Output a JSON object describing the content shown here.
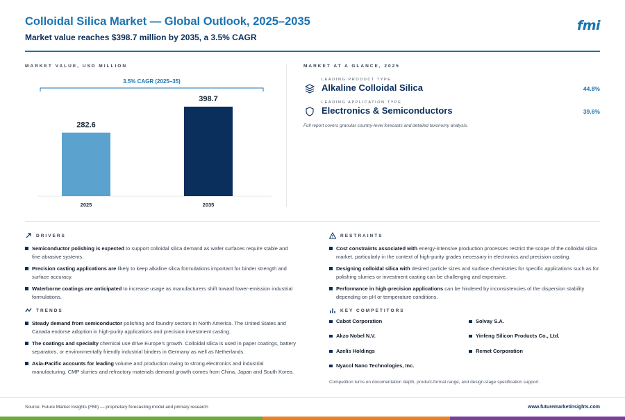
{
  "header": {
    "title": "Colloidal Silica Market — Global Outlook, 2025–2035",
    "subtitle": "Market value reaches $398.7 million by 2035, a 3.5% CAGR",
    "logo": "fmi"
  },
  "chart_section": {
    "label": "MARKET VALUE, USD MILLION"
  },
  "chart_data": {
    "type": "bar",
    "categories": [
      "2025",
      "2035"
    ],
    "values": [
      282.6,
      398.7
    ],
    "value_labels": [
      "282.6",
      "398.7"
    ],
    "annotation": "3.5% CAGR (2025–35)",
    "colors": [
      "#5ba2cf",
      "#0b2f5c"
    ],
    "ylim": [
      0,
      420
    ],
    "title": "",
    "xlabel": "",
    "ylabel": ""
  },
  "glance": {
    "label": "MARKET AT A GLANCE, 2025",
    "items": [
      {
        "kicker": "LEADING PRODUCT TYPE",
        "value": "Alkaline Colloidal Silica",
        "pct": "44.8%",
        "icon": "layers-icon"
      },
      {
        "kicker": "LEADING APPLICATION TYPE",
        "value": "Electronics & Semiconductors",
        "pct": "39.6%",
        "icon": "shield-icon"
      }
    ],
    "note": "Full report covers granular country-level forecasts and detailed taxonomy analysis."
  },
  "drivers": {
    "label": "DRIVERS",
    "items": [
      {
        "bold": "Semiconductor polishing is expected",
        "text": " to support colloidal silica demand as wafer surfaces require stable and fine abrasive systems."
      },
      {
        "bold": "Precision casting applications are",
        "text": " likely to keep alkaline silica formulations important for binder strength and surface accuracy."
      },
      {
        "bold": "Waterborne coatings are anticipated",
        "text": " to increase usage as manufacturers shift toward lower-emission industrial formulations."
      }
    ]
  },
  "trends": {
    "label": "TRENDS",
    "items": [
      {
        "bold": "Steady demand from semiconductor",
        "text": " polishing and foundry sectors in North America. The United States and Canada endorse adoption in high-purity applications and precision investment casting."
      },
      {
        "bold": "The coatings and specialty",
        "text": " chemical use drive Europe’s growth. Colloidal silica is used in paper coatings, battery separators, or environmentally friendly industrial binders in Germany as well as Netherlands."
      },
      {
        "bold": "Asia-Pacific accounts for leading",
        "text": " volume and production owing to strong electronics and industrial manufacturing. CMP slurries and refractory materials demand growth comes from China, Japan and South Korea."
      }
    ]
  },
  "restraints": {
    "label": "RESTRAINTS",
    "items": [
      {
        "bold": "Cost constraints associated with",
        "text": " energy-intensive production processes restrict the scope of the colloidal silica market, particularly in the context of high-purity grades necessary in electronics and precision casting."
      },
      {
        "bold": "Designing colloidal silica with",
        "text": " desired particle sizes and surface chemistries for specific applications such as for polishing slurries or investment casting can be challenging and expensive."
      },
      {
        "bold": "Performance in high-precision applications",
        "text": " can be hindered by inconsistencies of the dispersion stability depending on pH or temperature conditions."
      }
    ]
  },
  "competitors": {
    "label": "KEY COMPETITORS",
    "items": [
      "Cabot Corporation",
      "Solvay S.A.",
      "Akzo Nobel N.V.",
      "Yinfeng Silicon Products Co., Ltd.",
      "Azelis Holdings",
      "Remet Corporation",
      "Nyacol Nano Technologies, Inc."
    ],
    "note": "Competition turns on documentation depth, product-format range, and design-stage specification support."
  },
  "footer": {
    "source": "Source: Future Market Insights (FMI) — proprietary forecasting model and primary research",
    "url": "www.futuremarketinsights.com"
  },
  "colors": {
    "accent": "#1a73b0",
    "navy": "#0b2f5c",
    "stripe_green": "#6aaa3a",
    "stripe_orange": "#e8822a",
    "stripe_purple": "#7b3f98"
  }
}
